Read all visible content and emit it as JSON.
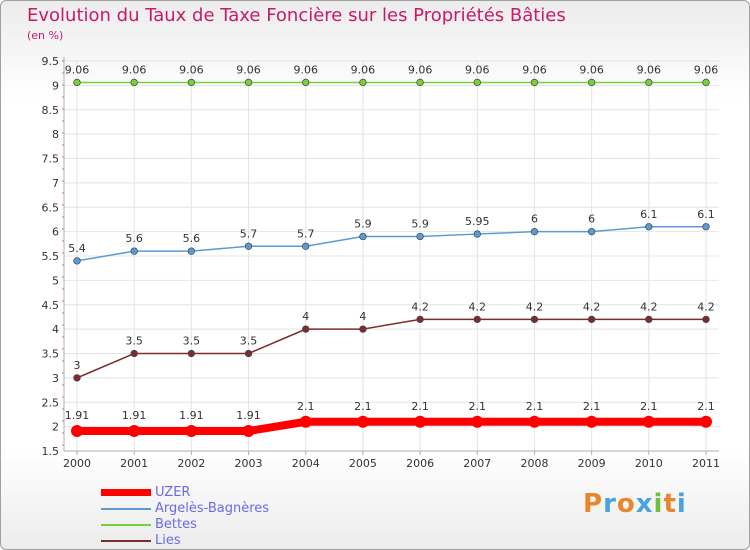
{
  "chart_data": {
    "type": "line",
    "title": "Evolution du Taux de Taxe Foncière sur les Propriétés Bâties",
    "unit_label": "(en %)",
    "x": [
      "2000",
      "2001",
      "2002",
      "2003",
      "2004",
      "2005",
      "2006",
      "2007",
      "2008",
      "2009",
      "2010",
      "2011"
    ],
    "ylim": [
      1.5,
      9.5
    ],
    "yticks": [
      "1.5",
      "2",
      "2.5",
      "3",
      "3.5",
      "4",
      "4.5",
      "5",
      "5.5",
      "6",
      "6.5",
      "7",
      "7.5",
      "8",
      "8.5",
      "9",
      "9.5"
    ],
    "series": [
      {
        "name": "UZER",
        "color": "#ff0000",
        "values": [
          1.91,
          1.91,
          1.91,
          1.91,
          2.1,
          2.1,
          2.1,
          2.1,
          2.1,
          2.1,
          2.1,
          2.1
        ],
        "labels": [
          "1.91",
          "1.91",
          "1.91",
          "1.91",
          "2.1",
          "2.1",
          "2.1",
          "2.1",
          "2.1",
          "2.1",
          "2.1",
          "2.1"
        ]
      },
      {
        "name": "Argelès-Bagnères",
        "color": "#5b9bd5",
        "values": [
          5.4,
          5.6,
          5.6,
          5.7,
          5.7,
          5.9,
          5.9,
          5.95,
          6,
          6,
          6.1,
          6.1
        ],
        "labels": [
          "5.4",
          "5.6",
          "5.6",
          "5.7",
          "5.7",
          "5.9",
          "5.9",
          "5.95",
          "6",
          "6",
          "6.1",
          "6.1"
        ]
      },
      {
        "name": "Bettes",
        "color": "#77d13c",
        "values": [
          9.06,
          9.06,
          9.06,
          9.06,
          9.06,
          9.06,
          9.06,
          9.06,
          9.06,
          9.06,
          9.06,
          9.06
        ],
        "labels": [
          "9.06",
          "9.06",
          "9.06",
          "9.06",
          "9.06",
          "9.06",
          "9.06",
          "9.06",
          "9.06",
          "9.06",
          "9.06",
          "9.06"
        ]
      },
      {
        "name": "Lies",
        "color": "#7b2d2d",
        "values": [
          3,
          3.5,
          3.5,
          3.5,
          4,
          4,
          4.2,
          4.2,
          4.2,
          4.2,
          4.2,
          4.2
        ],
        "labels": [
          "3",
          "3.5",
          "3.5",
          "3.5",
          "4",
          "4",
          "4.2",
          "4.2",
          "4.2",
          "4.2",
          "4.2",
          "4.2"
        ]
      }
    ]
  },
  "logo": {
    "text": "Proxiti"
  }
}
